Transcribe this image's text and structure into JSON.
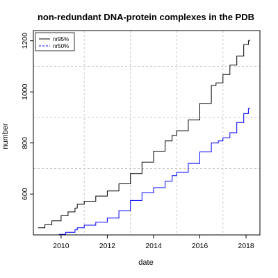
{
  "chart_data": {
    "type": "line",
    "title": "non-redundant DNA-protein complexes in the PDB",
    "xlabel": "date",
    "ylabel": "number",
    "xlim": [
      2008.8,
      2018.6
    ],
    "ylim": [
      440,
      1240
    ],
    "x_ticks": [
      2010,
      2012,
      2014,
      2016,
      2018
    ],
    "y_ticks": [
      600,
      800,
      1000,
      1200
    ],
    "grid": true,
    "legend": "top-left",
    "series": [
      {
        "name": "nr95%",
        "color": "#000000",
        "line_style": "solid",
        "points": [
          [
            2009.0,
            468
          ],
          [
            2009.3,
            480
          ],
          [
            2009.6,
            495
          ],
          [
            2010.0,
            515
          ],
          [
            2010.3,
            530
          ],
          [
            2010.6,
            545
          ],
          [
            2010.7,
            560
          ],
          [
            2011.0,
            572
          ],
          [
            2011.5,
            592
          ],
          [
            2012.0,
            612
          ],
          [
            2012.5,
            640
          ],
          [
            2013.0,
            680
          ],
          [
            2013.5,
            725
          ],
          [
            2014.0,
            768
          ],
          [
            2014.5,
            808
          ],
          [
            2014.8,
            830
          ],
          [
            2015.0,
            848
          ],
          [
            2015.5,
            890
          ],
          [
            2016.0,
            955
          ],
          [
            2016.5,
            1025
          ],
          [
            2016.7,
            1035
          ],
          [
            2017.0,
            1068
          ],
          [
            2017.3,
            1105
          ],
          [
            2017.6,
            1140
          ],
          [
            2017.9,
            1185
          ],
          [
            2018.1,
            1200
          ],
          [
            2018.15,
            1205
          ]
        ]
      },
      {
        "name": "nr50%",
        "color": "#0000ff",
        "line_style": "dashed",
        "points": [
          [
            2009.9,
            442
          ],
          [
            2010.2,
            450
          ],
          [
            2010.6,
            460
          ],
          [
            2010.7,
            468
          ],
          [
            2011.0,
            478
          ],
          [
            2011.5,
            490
          ],
          [
            2012.0,
            506
          ],
          [
            2012.5,
            535
          ],
          [
            2013.0,
            575
          ],
          [
            2013.5,
            605
          ],
          [
            2014.0,
            625
          ],
          [
            2014.5,
            650
          ],
          [
            2014.8,
            672
          ],
          [
            2015.0,
            685
          ],
          [
            2015.5,
            720
          ],
          [
            2016.0,
            765
          ],
          [
            2016.5,
            800
          ],
          [
            2016.8,
            808
          ],
          [
            2017.0,
            820
          ],
          [
            2017.3,
            840
          ],
          [
            2017.6,
            880
          ],
          [
            2017.9,
            915
          ],
          [
            2018.1,
            935
          ],
          [
            2018.15,
            938
          ]
        ]
      }
    ]
  }
}
